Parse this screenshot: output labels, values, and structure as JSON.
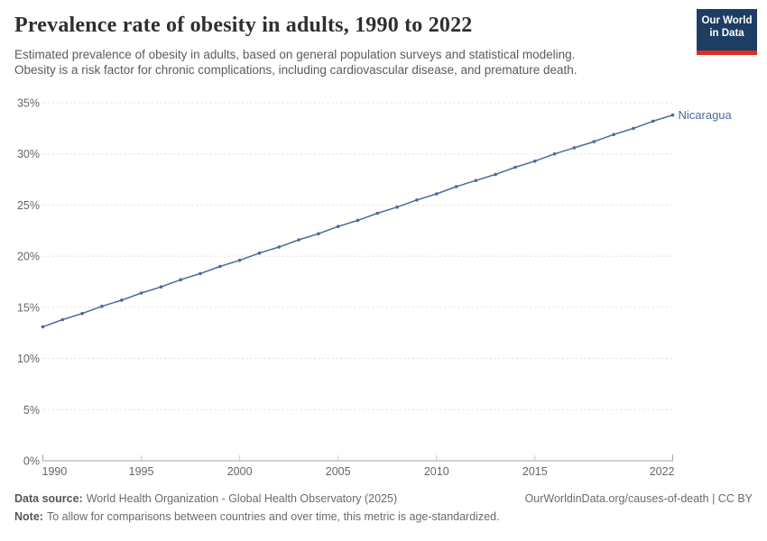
{
  "header": {
    "title": "Prevalence rate of obesity in adults, 1990 to 2022",
    "subtitle_lines": [
      "Estimated prevalence of obesity in adults, based on general population surveys and statistical modeling.",
      "Obesity is a risk factor for chronic complications, including cardiovascular disease, and premature death."
    ],
    "logo": {
      "line1": "Our World",
      "line2": "in Data"
    }
  },
  "chart_data": {
    "type": "line",
    "title": "Prevalence rate of obesity in adults, 1990 to 2022",
    "x": [
      1990,
      1991,
      1992,
      1993,
      1994,
      1995,
      1996,
      1997,
      1998,
      1999,
      2000,
      2001,
      2002,
      2003,
      2004,
      2005,
      2006,
      2007,
      2008,
      2009,
      2010,
      2011,
      2012,
      2013,
      2014,
      2015,
      2016,
      2017,
      2018,
      2019,
      2020,
      2021,
      2022
    ],
    "series": [
      {
        "name": "Nicaragua",
        "color": "#4c6a9c",
        "values": [
          13.1,
          13.8,
          14.4,
          15.1,
          15.7,
          16.4,
          17.0,
          17.7,
          18.3,
          19.0,
          19.6,
          20.3,
          20.9,
          21.6,
          22.2,
          22.9,
          23.5,
          24.2,
          24.8,
          25.5,
          26.1,
          26.8,
          27.4,
          28.0,
          28.7,
          29.3,
          30.0,
          30.6,
          31.2,
          31.9,
          32.5,
          33.2,
          33.8
        ]
      }
    ],
    "xlabel": "",
    "ylabel": "",
    "xlim": [
      1990,
      2022
    ],
    "ylim": [
      0,
      35
    ],
    "xticks": [
      1990,
      1995,
      2000,
      2005,
      2010,
      2015,
      2022
    ],
    "yticks": [
      {
        "value": 0,
        "label": "0%"
      },
      {
        "value": 5,
        "label": "5%"
      },
      {
        "value": 10,
        "label": "10%"
      },
      {
        "value": 15,
        "label": "15%"
      },
      {
        "value": 20,
        "label": "20%"
      },
      {
        "value": 25,
        "label": "25%"
      },
      {
        "value": 30,
        "label": "30%"
      },
      {
        "value": 35,
        "label": "35%"
      }
    ],
    "grid": "horizontal-dashed",
    "legend_position": "end-of-line-label"
  },
  "footer": {
    "data_source_label": "Data source:",
    "data_source_text": "World Health Organization - Global Health Observatory (2025)",
    "note_label": "Note:",
    "note_text": "To allow for comparisons between countries and over time, this metric is age-standardized.",
    "credit": "OurWorldinData.org/causes-of-death | CC BY"
  },
  "colors": {
    "line": "#4c6a9c",
    "grid": "#dcdcdc",
    "axis": "#a5a5a5",
    "inner_tick": "#c9c9c9",
    "tick_label": "#666666",
    "title": "#2f2f2f",
    "subtitle": "#5b5b5b",
    "footer": "#6b6b6b",
    "logo_bg": "#1d3d63",
    "logo_accent": "#dc2e22"
  }
}
